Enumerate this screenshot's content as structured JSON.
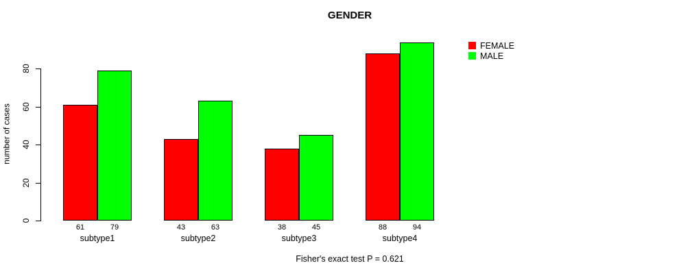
{
  "chart_data": {
    "type": "bar",
    "title": "GENDER",
    "ylabel": "number of cases",
    "xlabel": "",
    "categories": [
      "subtype1",
      "subtype2",
      "subtype3",
      "subtype4"
    ],
    "series": [
      {
        "name": "FEMALE",
        "color": "#ff0000",
        "values": [
          61,
          43,
          38,
          88
        ]
      },
      {
        "name": "MALE",
        "color": "#00ff00",
        "values": [
          79,
          63,
          45,
          94
        ]
      }
    ],
    "yticks": [
      0,
      20,
      40,
      60,
      80
    ],
    "ylim": [
      0,
      94
    ],
    "grid": false,
    "legend_position": "top-right-outside-bars",
    "bar_value_labels_shown": true,
    "annotation": "Fisher's exact test P = 0.621"
  },
  "colors": {
    "background": "#ffffff",
    "text": "#000000",
    "bar_border": "#000000"
  }
}
